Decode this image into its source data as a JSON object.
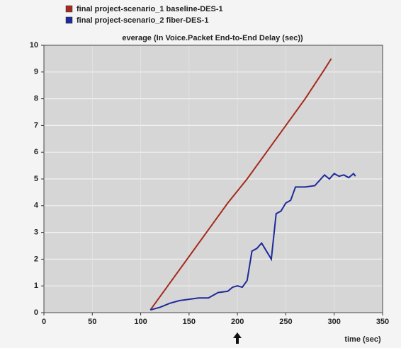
{
  "chart_data": {
    "type": "line",
    "title": "everage (In Voice.Packet End-to-End Delay (sec))",
    "x_label": "time (sec)",
    "series": [
      {
        "name": "final project-scenario_1 baseline-DES-1",
        "color": "#a52a1e",
        "x": [
          110,
          130,
          150,
          170,
          190,
          210,
          230,
          250,
          270,
          290,
          297
        ],
        "values": [
          0.1,
          1.1,
          2.1,
          3.1,
          4.1,
          5.0,
          6.0,
          7.0,
          8.0,
          9.1,
          9.5
        ]
      },
      {
        "name": "final project-scenario_2 fiber-DES-1",
        "color": "#1e2a9a",
        "x": [
          110,
          115,
          120,
          130,
          140,
          150,
          160,
          170,
          180,
          190,
          195,
          200,
          205,
          210,
          215,
          220,
          225,
          230,
          235,
          240,
          245,
          250,
          255,
          260,
          270,
          280,
          290,
          295,
          300,
          305,
          310,
          315,
          320,
          322
        ],
        "values": [
          0.1,
          0.15,
          0.2,
          0.35,
          0.45,
          0.5,
          0.55,
          0.55,
          0.75,
          0.8,
          0.95,
          1.0,
          0.95,
          1.2,
          2.3,
          2.4,
          2.6,
          2.3,
          2.0,
          3.7,
          3.8,
          4.1,
          4.2,
          4.7,
          4.7,
          4.75,
          5.15,
          5.0,
          5.2,
          5.1,
          5.15,
          5.05,
          5.2,
          5.1
        ]
      }
    ],
    "xlim": [
      0,
      350
    ],
    "xticks": [
      0,
      50,
      100,
      150,
      200,
      250,
      300,
      350
    ],
    "ylim": [
      0,
      10
    ],
    "yticks": [
      0,
      1,
      2,
      3,
      4,
      5,
      6,
      7,
      8,
      9,
      10
    ],
    "grid": true
  }
}
